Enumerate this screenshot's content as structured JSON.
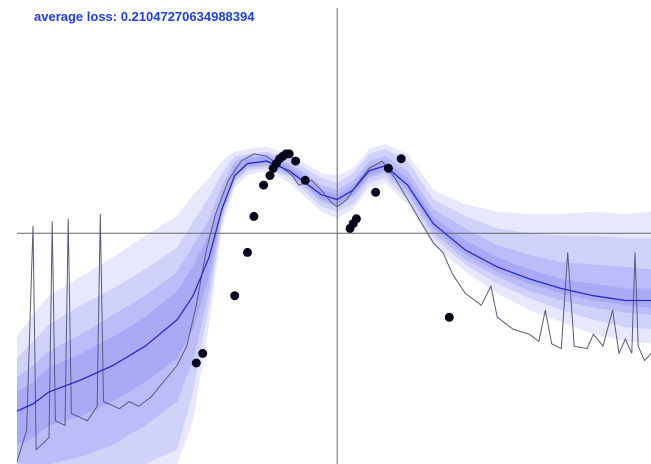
{
  "loss_text": "average loss: 0.21047270634988394",
  "colors": {
    "band": "#7b7ff2",
    "mean_line": "#2a2ad0",
    "sample_line": "#5a5a7a",
    "axis": "#666666",
    "points": "#05051c",
    "label": "#1f3fd6"
  },
  "chart_data": {
    "type": "line",
    "x_range": [
      -1.0,
      0.98
    ],
    "y_range": [
      -0.96,
      0.97
    ],
    "grid": false,
    "mean": [
      [
        -1.0,
        -0.74
      ],
      [
        -0.95,
        -0.71
      ],
      [
        -0.9,
        -0.66
      ],
      [
        -0.8,
        -0.61
      ],
      [
        -0.7,
        -0.55
      ],
      [
        -0.6,
        -0.47
      ],
      [
        -0.5,
        -0.36
      ],
      [
        -0.45,
        -0.26
      ],
      [
        -0.4,
        -0.1
      ],
      [
        -0.36,
        0.1
      ],
      [
        -0.32,
        0.24
      ],
      [
        -0.28,
        0.29
      ],
      [
        -0.22,
        0.3
      ],
      [
        -0.15,
        0.26
      ],
      [
        -0.1,
        0.21
      ],
      [
        -0.05,
        0.16
      ],
      [
        0.0,
        0.14
      ],
      [
        0.05,
        0.18
      ],
      [
        0.1,
        0.26
      ],
      [
        0.15,
        0.28
      ],
      [
        0.22,
        0.2
      ],
      [
        0.3,
        0.04
      ],
      [
        0.4,
        -0.07
      ],
      [
        0.5,
        -0.14
      ],
      [
        0.6,
        -0.19
      ],
      [
        0.7,
        -0.23
      ],
      [
        0.8,
        -0.26
      ],
      [
        0.9,
        -0.28
      ],
      [
        0.98,
        -0.28
      ]
    ],
    "bands": [
      {
        "level": 1,
        "lower": [
          -0.96,
          -0.96,
          -0.96,
          -0.96,
          -0.96,
          -0.96,
          -0.96,
          -0.78,
          -0.38,
          0.02,
          0.19,
          0.24,
          0.26,
          0.21,
          0.15,
          0.09,
          0.06,
          0.1,
          0.19,
          0.21,
          0.12,
          -0.05,
          -0.16,
          -0.25,
          -0.32,
          -0.37,
          -0.42,
          -0.45,
          -0.46
        ],
        "upper": [
          -0.43,
          -0.34,
          -0.26,
          -0.18,
          -0.1,
          -0.01,
          0.07,
          0.16,
          0.23,
          0.3,
          0.34,
          0.35,
          0.36,
          0.33,
          0.29,
          0.25,
          0.24,
          0.27,
          0.35,
          0.37,
          0.33,
          0.18,
          0.12,
          0.09,
          0.08,
          0.08,
          0.09,
          0.08,
          0.09
        ]
      },
      {
        "level": 2,
        "lower": [
          -0.96,
          -0.96,
          -0.96,
          -0.96,
          -0.96,
          -0.96,
          -0.9,
          -0.66,
          -0.3,
          0.05,
          0.21,
          0.26,
          0.27,
          0.23,
          0.17,
          0.11,
          0.09,
          0.12,
          0.21,
          0.23,
          0.14,
          -0.02,
          -0.13,
          -0.21,
          -0.27,
          -0.32,
          -0.36,
          -0.39,
          -0.4
        ],
        "upper": [
          -0.52,
          -0.45,
          -0.38,
          -0.3,
          -0.23,
          -0.15,
          -0.06,
          0.05,
          0.15,
          0.25,
          0.32,
          0.33,
          0.34,
          0.31,
          0.27,
          0.23,
          0.21,
          0.25,
          0.33,
          0.35,
          0.3,
          0.14,
          0.07,
          0.02,
          0.0,
          -0.01,
          -0.01,
          -0.02,
          -0.02
        ]
      },
      {
        "level": 3,
        "lower": [
          -0.96,
          -0.96,
          -0.96,
          -0.93,
          -0.88,
          -0.8,
          -0.7,
          -0.53,
          -0.24,
          0.07,
          0.22,
          0.27,
          0.28,
          0.24,
          0.19,
          0.13,
          0.11,
          0.15,
          0.23,
          0.25,
          0.16,
          0.0,
          -0.11,
          -0.18,
          -0.24,
          -0.28,
          -0.31,
          -0.33,
          -0.34
        ],
        "upper": [
          -0.6,
          -0.55,
          -0.49,
          -0.42,
          -0.34,
          -0.26,
          -0.16,
          -0.05,
          0.06,
          0.2,
          0.3,
          0.32,
          0.33,
          0.29,
          0.25,
          0.2,
          0.18,
          0.22,
          0.3,
          0.32,
          0.26,
          0.1,
          0.02,
          -0.05,
          -0.09,
          -0.12,
          -0.13,
          -0.14,
          -0.15
        ]
      },
      {
        "level": 4,
        "lower": [
          -0.88,
          -0.85,
          -0.8,
          -0.76,
          -0.7,
          -0.62,
          -0.52,
          -0.4,
          -0.18,
          0.09,
          0.23,
          0.28,
          0.29,
          0.25,
          0.2,
          0.14,
          0.12,
          0.16,
          0.24,
          0.26,
          0.18,
          0.02,
          -0.09,
          -0.16,
          -0.21,
          -0.25,
          -0.28,
          -0.3,
          -0.31
        ],
        "upper": [
          -0.66,
          -0.62,
          -0.56,
          -0.5,
          -0.43,
          -0.35,
          -0.24,
          -0.14,
          0.0,
          0.16,
          0.28,
          0.31,
          0.32,
          0.28,
          0.23,
          0.18,
          0.16,
          0.2,
          0.28,
          0.3,
          0.23,
          0.07,
          -0.03,
          -0.1,
          -0.15,
          -0.19,
          -0.21,
          -0.23,
          -0.23
        ]
      }
    ],
    "sample_line": [
      [
        -1.0,
        -0.95
      ],
      [
        -0.97,
        -0.82
      ],
      [
        -0.95,
        0.03
      ],
      [
        -0.94,
        -0.9
      ],
      [
        -0.9,
        -0.85
      ],
      [
        -0.89,
        0.05
      ],
      [
        -0.88,
        -0.78
      ],
      [
        -0.85,
        -0.8
      ],
      [
        -0.84,
        0.06
      ],
      [
        -0.83,
        -0.75
      ],
      [
        -0.78,
        -0.78
      ],
      [
        -0.75,
        -0.72
      ],
      [
        -0.74,
        0.08
      ],
      [
        -0.73,
        -0.7
      ],
      [
        -0.68,
        -0.73
      ],
      [
        -0.65,
        -0.7
      ],
      [
        -0.62,
        -0.72
      ],
      [
        -0.58,
        -0.68
      ],
      [
        -0.55,
        -0.63
      ],
      [
        -0.5,
        -0.55
      ],
      [
        -0.47,
        -0.47
      ],
      [
        -0.44,
        -0.3
      ],
      [
        -0.41,
        -0.08
      ],
      [
        -0.38,
        0.08
      ],
      [
        -0.34,
        0.22
      ],
      [
        -0.3,
        0.3
      ],
      [
        -0.26,
        0.33
      ],
      [
        -0.22,
        0.32
      ],
      [
        -0.18,
        0.28
      ],
      [
        -0.14,
        0.24
      ],
      [
        -0.12,
        0.2
      ],
      [
        -0.08,
        0.22
      ],
      [
        -0.05,
        0.18
      ],
      [
        -0.02,
        0.13
      ],
      [
        0.0,
        0.11
      ],
      [
        0.03,
        0.14
      ],
      [
        0.06,
        0.2
      ],
      [
        0.1,
        0.27
      ],
      [
        0.14,
        0.3
      ],
      [
        0.18,
        0.23
      ],
      [
        0.22,
        0.14
      ],
      [
        0.26,
        0.05
      ],
      [
        0.3,
        -0.04
      ],
      [
        0.33,
        -0.08
      ],
      [
        0.36,
        -0.17
      ],
      [
        0.4,
        -0.25
      ],
      [
        0.45,
        -0.3
      ],
      [
        0.48,
        -0.22
      ],
      [
        0.5,
        -0.35
      ],
      [
        0.55,
        -0.4
      ],
      [
        0.6,
        -0.42
      ],
      [
        0.63,
        -0.45
      ],
      [
        0.65,
        -0.32
      ],
      [
        0.67,
        -0.46
      ],
      [
        0.7,
        -0.48
      ],
      [
        0.72,
        -0.08
      ],
      [
        0.74,
        -0.47
      ],
      [
        0.78,
        -0.48
      ],
      [
        0.8,
        -0.42
      ],
      [
        0.83,
        -0.47
      ],
      [
        0.86,
        -0.32
      ],
      [
        0.88,
        -0.5
      ],
      [
        0.9,
        -0.44
      ],
      [
        0.92,
        -0.5
      ],
      [
        0.93,
        -0.08
      ],
      [
        0.94,
        -0.47
      ],
      [
        0.96,
        -0.53
      ],
      [
        0.98,
        -0.5
      ]
    ],
    "points": [
      [
        -0.44,
        -0.54
      ],
      [
        -0.42,
        -0.5
      ],
      [
        -0.32,
        -0.26
      ],
      [
        -0.28,
        -0.08
      ],
      [
        -0.26,
        0.07
      ],
      [
        -0.23,
        0.2
      ],
      [
        -0.21,
        0.24
      ],
      [
        -0.2,
        0.27
      ],
      [
        -0.19,
        0.29
      ],
      [
        -0.18,
        0.31
      ],
      [
        -0.17,
        0.32
      ],
      [
        -0.16,
        0.33
      ],
      [
        -0.15,
        0.33
      ],
      [
        -0.13,
        0.3
      ],
      [
        -0.1,
        0.22
      ],
      [
        0.04,
        0.02
      ],
      [
        0.05,
        0.04
      ],
      [
        0.06,
        0.06
      ],
      [
        0.12,
        0.17
      ],
      [
        0.16,
        0.27
      ],
      [
        0.2,
        0.31
      ],
      [
        0.35,
        -0.35
      ]
    ]
  }
}
